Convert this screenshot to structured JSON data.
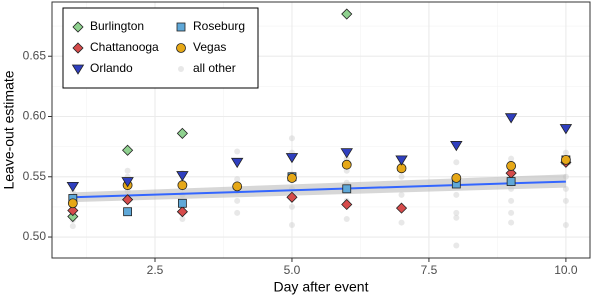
{
  "chart_data": {
    "type": "scatter",
    "x_label": "Day after event",
    "y_label": "Leave-out estimate",
    "xlim": [
      0.62,
      10.44
    ],
    "ylim": [
      0.4826,
      0.695
    ],
    "xticks": [
      2.5,
      {
        "value": 5,
        "label": "5.0"
      },
      7.5,
      {
        "value": 10,
        "label": "10.0"
      }
    ],
    "yticks": [
      {
        "value": 0.5,
        "label": "0.50"
      },
      0.55,
      {
        "value": 0.6,
        "label": "0.60"
      },
      0.65
    ],
    "x_minor_ticks": [
      1.25,
      3.75,
      6.25,
      8.75
    ],
    "y_minor_ticks": [
      0.525,
      0.575,
      0.625,
      0.675
    ],
    "grid": true,
    "legend": "top-left",
    "fit": {
      "color": "#3366ff",
      "band_color": "#bdbdbd",
      "x": [
        1,
        10
      ],
      "values": [
        0.533,
        0.546
      ],
      "lower": [
        0.529,
        0.541
      ],
      "upper": [
        0.537,
        0.552
      ]
    },
    "series": [
      {
        "name": "all other",
        "color": "#cccccc",
        "marker": "dot",
        "x": [
          1,
          1,
          1,
          1,
          1,
          2,
          2,
          2,
          2,
          2,
          3,
          3,
          3,
          3,
          3,
          4,
          4,
          4,
          4,
          4,
          5,
          5,
          5,
          5,
          5,
          5,
          6,
          6,
          6,
          6,
          6,
          7,
          7,
          7,
          7,
          7,
          8,
          8,
          8,
          8,
          8,
          8,
          9,
          9,
          9,
          9,
          9,
          10,
          10,
          10,
          10,
          10
        ],
        "values": [
          0.509,
          0.514,
          0.519,
          0.524,
          0.537,
          0.522,
          0.533,
          0.538,
          0.55,
          0.555,
          0.515,
          0.525,
          0.535,
          0.545,
          0.553,
          0.52,
          0.53,
          0.538,
          0.548,
          0.571,
          0.51,
          0.525,
          0.54,
          0.552,
          0.57,
          0.582,
          0.515,
          0.53,
          0.545,
          0.555,
          0.565,
          0.512,
          0.525,
          0.535,
          0.55,
          0.56,
          0.493,
          0.516,
          0.52,
          0.535,
          0.548,
          0.562,
          0.512,
          0.52,
          0.53,
          0.54,
          0.565,
          0.51,
          0.53,
          0.54,
          0.55,
          0.57
        ]
      },
      {
        "name": "Burlington",
        "color": "#8fd18f",
        "marker": "diamond",
        "x": [
          1,
          2,
          3,
          6
        ],
        "values": [
          0.517,
          0.572,
          0.586,
          0.685
        ]
      },
      {
        "name": "Chattanooga",
        "color": "#d64b4b",
        "marker": "diamond",
        "x": [
          1,
          2,
          3,
          5,
          6,
          7,
          9,
          10
        ],
        "values": [
          0.522,
          0.531,
          0.521,
          0.533,
          0.527,
          0.524,
          0.553,
          0.562
        ]
      },
      {
        "name": "Roseburg",
        "color": "#5fa8d8",
        "marker": "square",
        "x": [
          1,
          2,
          3,
          5,
          6,
          8,
          9,
          10
        ],
        "values": [
          0.532,
          0.521,
          0.528,
          0.55,
          0.54,
          0.544,
          0.546,
          0.564
        ]
      },
      {
        "name": "Vegas",
        "color": "#e6a817",
        "marker": "circle",
        "x": [
          1,
          2,
          3,
          4,
          5,
          6,
          7,
          8,
          9,
          10
        ],
        "values": [
          0.528,
          0.543,
          0.543,
          0.542,
          0.549,
          0.56,
          0.557,
          0.549,
          0.559,
          0.564
        ]
      },
      {
        "name": "Orlando",
        "color": "#2f3fbf",
        "marker": "triangle",
        "x": [
          1,
          2,
          3,
          4,
          5,
          6,
          7,
          8,
          9,
          10
        ],
        "values": [
          0.542,
          0.546,
          0.551,
          0.562,
          0.566,
          0.57,
          0.564,
          0.576,
          0.599,
          0.59
        ]
      }
    ]
  }
}
